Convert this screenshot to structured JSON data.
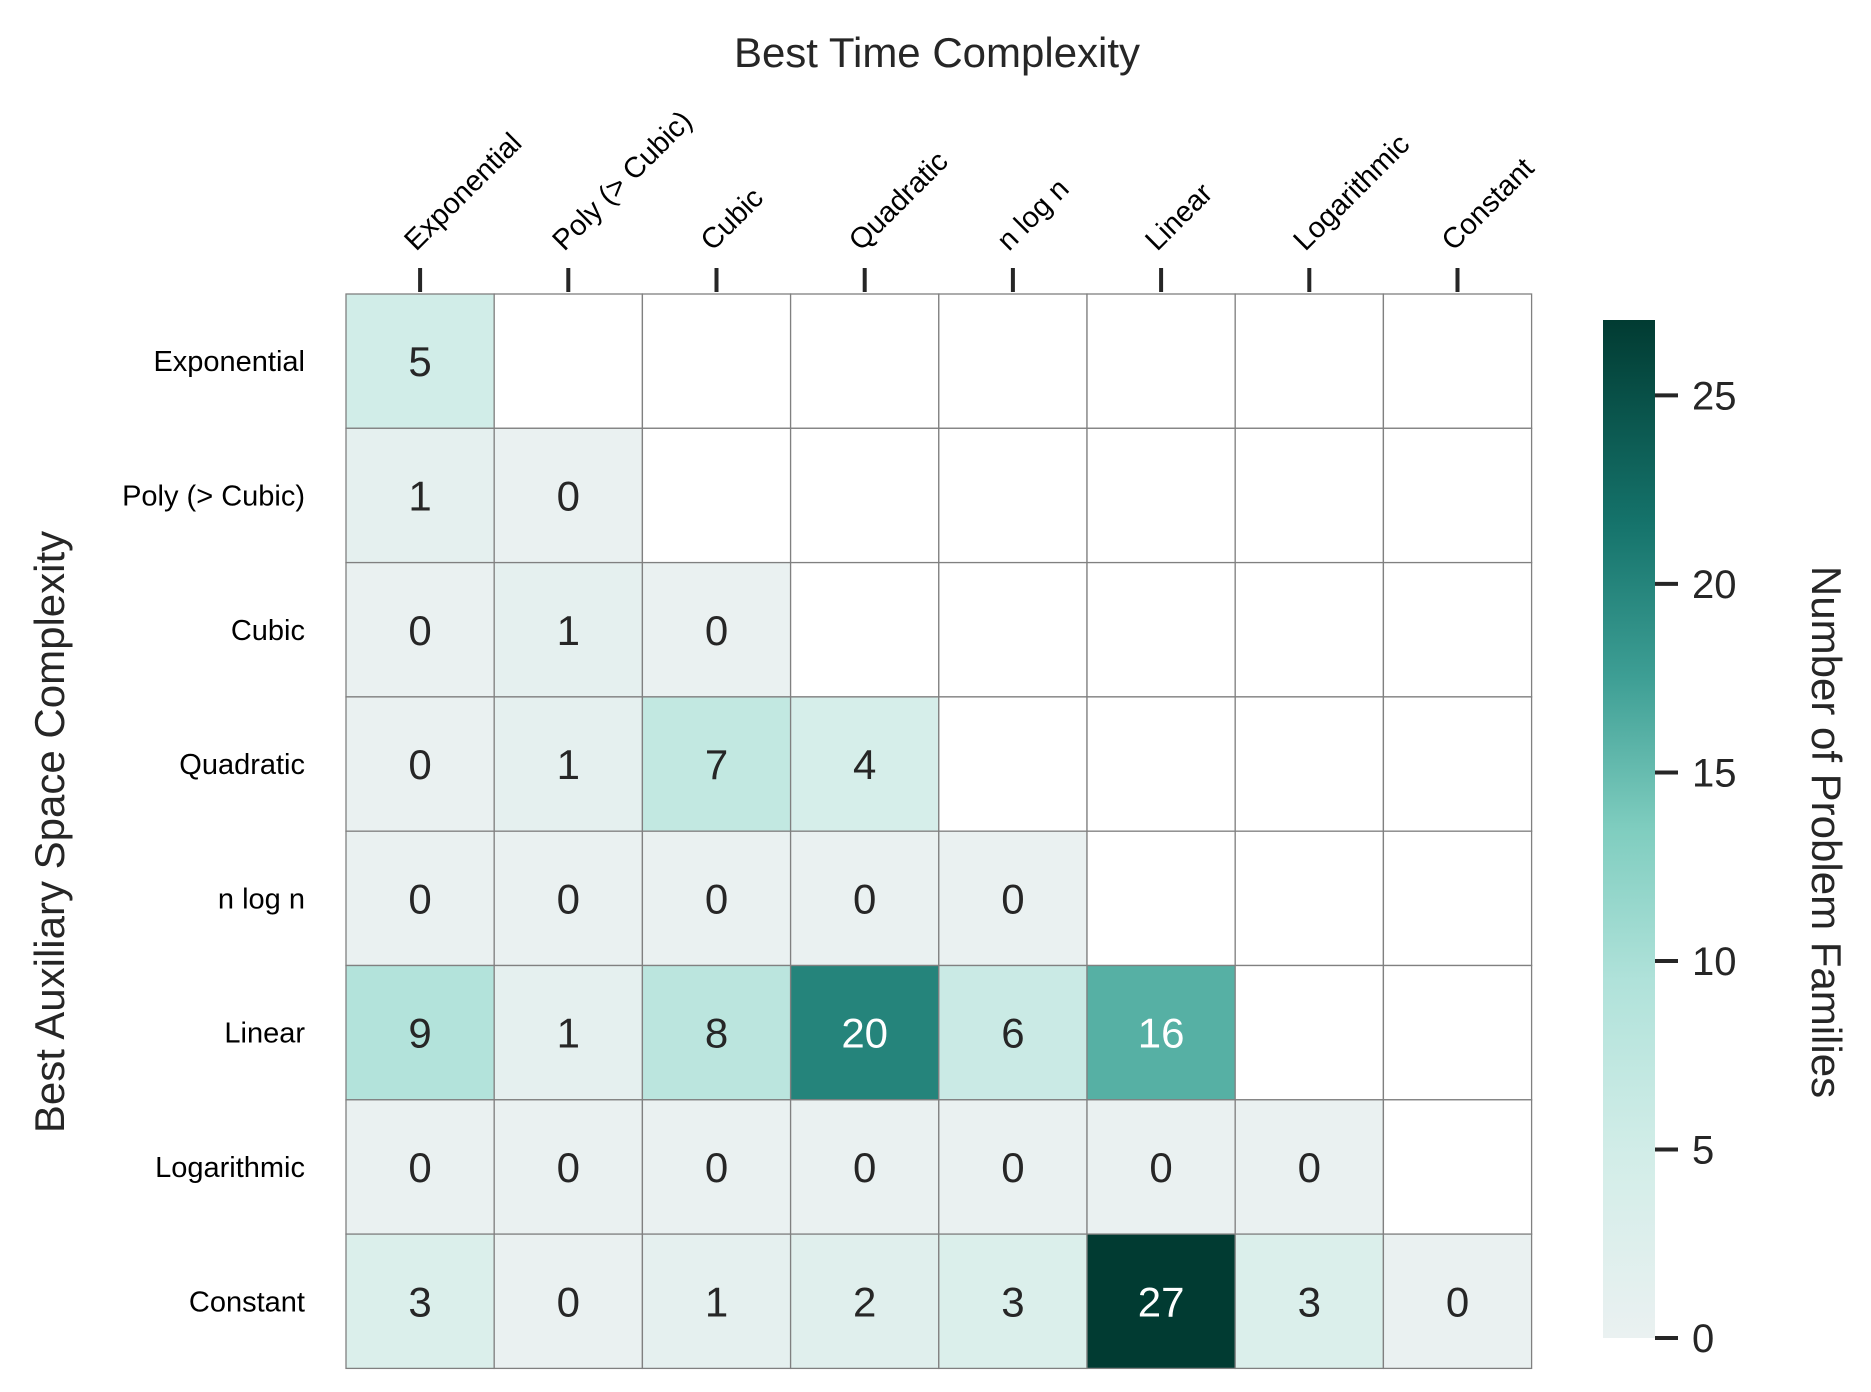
{
  "chart_data": {
    "type": "heatmap",
    "title": "Best Time Complexity",
    "xlabel": "Best Time Complexity",
    "ylabel": "Best Auxiliary Space Complexity",
    "colorbar_label": "Number of Problem Families",
    "x_categories": [
      "Exponential",
      "Poly (> Cubic)",
      "Cubic",
      "Quadratic",
      "n log n",
      "Linear",
      "Logarithmic",
      "Constant"
    ],
    "y_categories": [
      "Exponential",
      "Poly (> Cubic)",
      "Cubic",
      "Quadratic",
      "n log n",
      "Linear",
      "Logarithmic",
      "Constant"
    ],
    "values": [
      [
        5,
        null,
        null,
        null,
        null,
        null,
        null,
        null
      ],
      [
        1,
        0,
        null,
        null,
        null,
        null,
        null,
        null
      ],
      [
        0,
        1,
        0,
        null,
        null,
        null,
        null,
        null
      ],
      [
        0,
        1,
        7,
        4,
        null,
        null,
        null,
        null
      ],
      [
        0,
        0,
        0,
        0,
        0,
        null,
        null,
        null
      ],
      [
        9,
        1,
        8,
        20,
        6,
        16,
        null,
        null
      ],
      [
        0,
        0,
        0,
        0,
        0,
        0,
        0,
        null
      ],
      [
        3,
        0,
        1,
        2,
        3,
        27,
        3,
        0
      ]
    ],
    "colorbar_range": [
      0,
      27
    ],
    "colorbar_ticks": [
      0,
      5,
      10,
      15,
      20,
      25
    ],
    "colors": {
      "low": "#eaf1f1",
      "mid": "#8fd4c5",
      "high": "#013b32",
      "grid": "#808080",
      "text_dark": "#262626",
      "text_light": "#ffffff"
    }
  }
}
